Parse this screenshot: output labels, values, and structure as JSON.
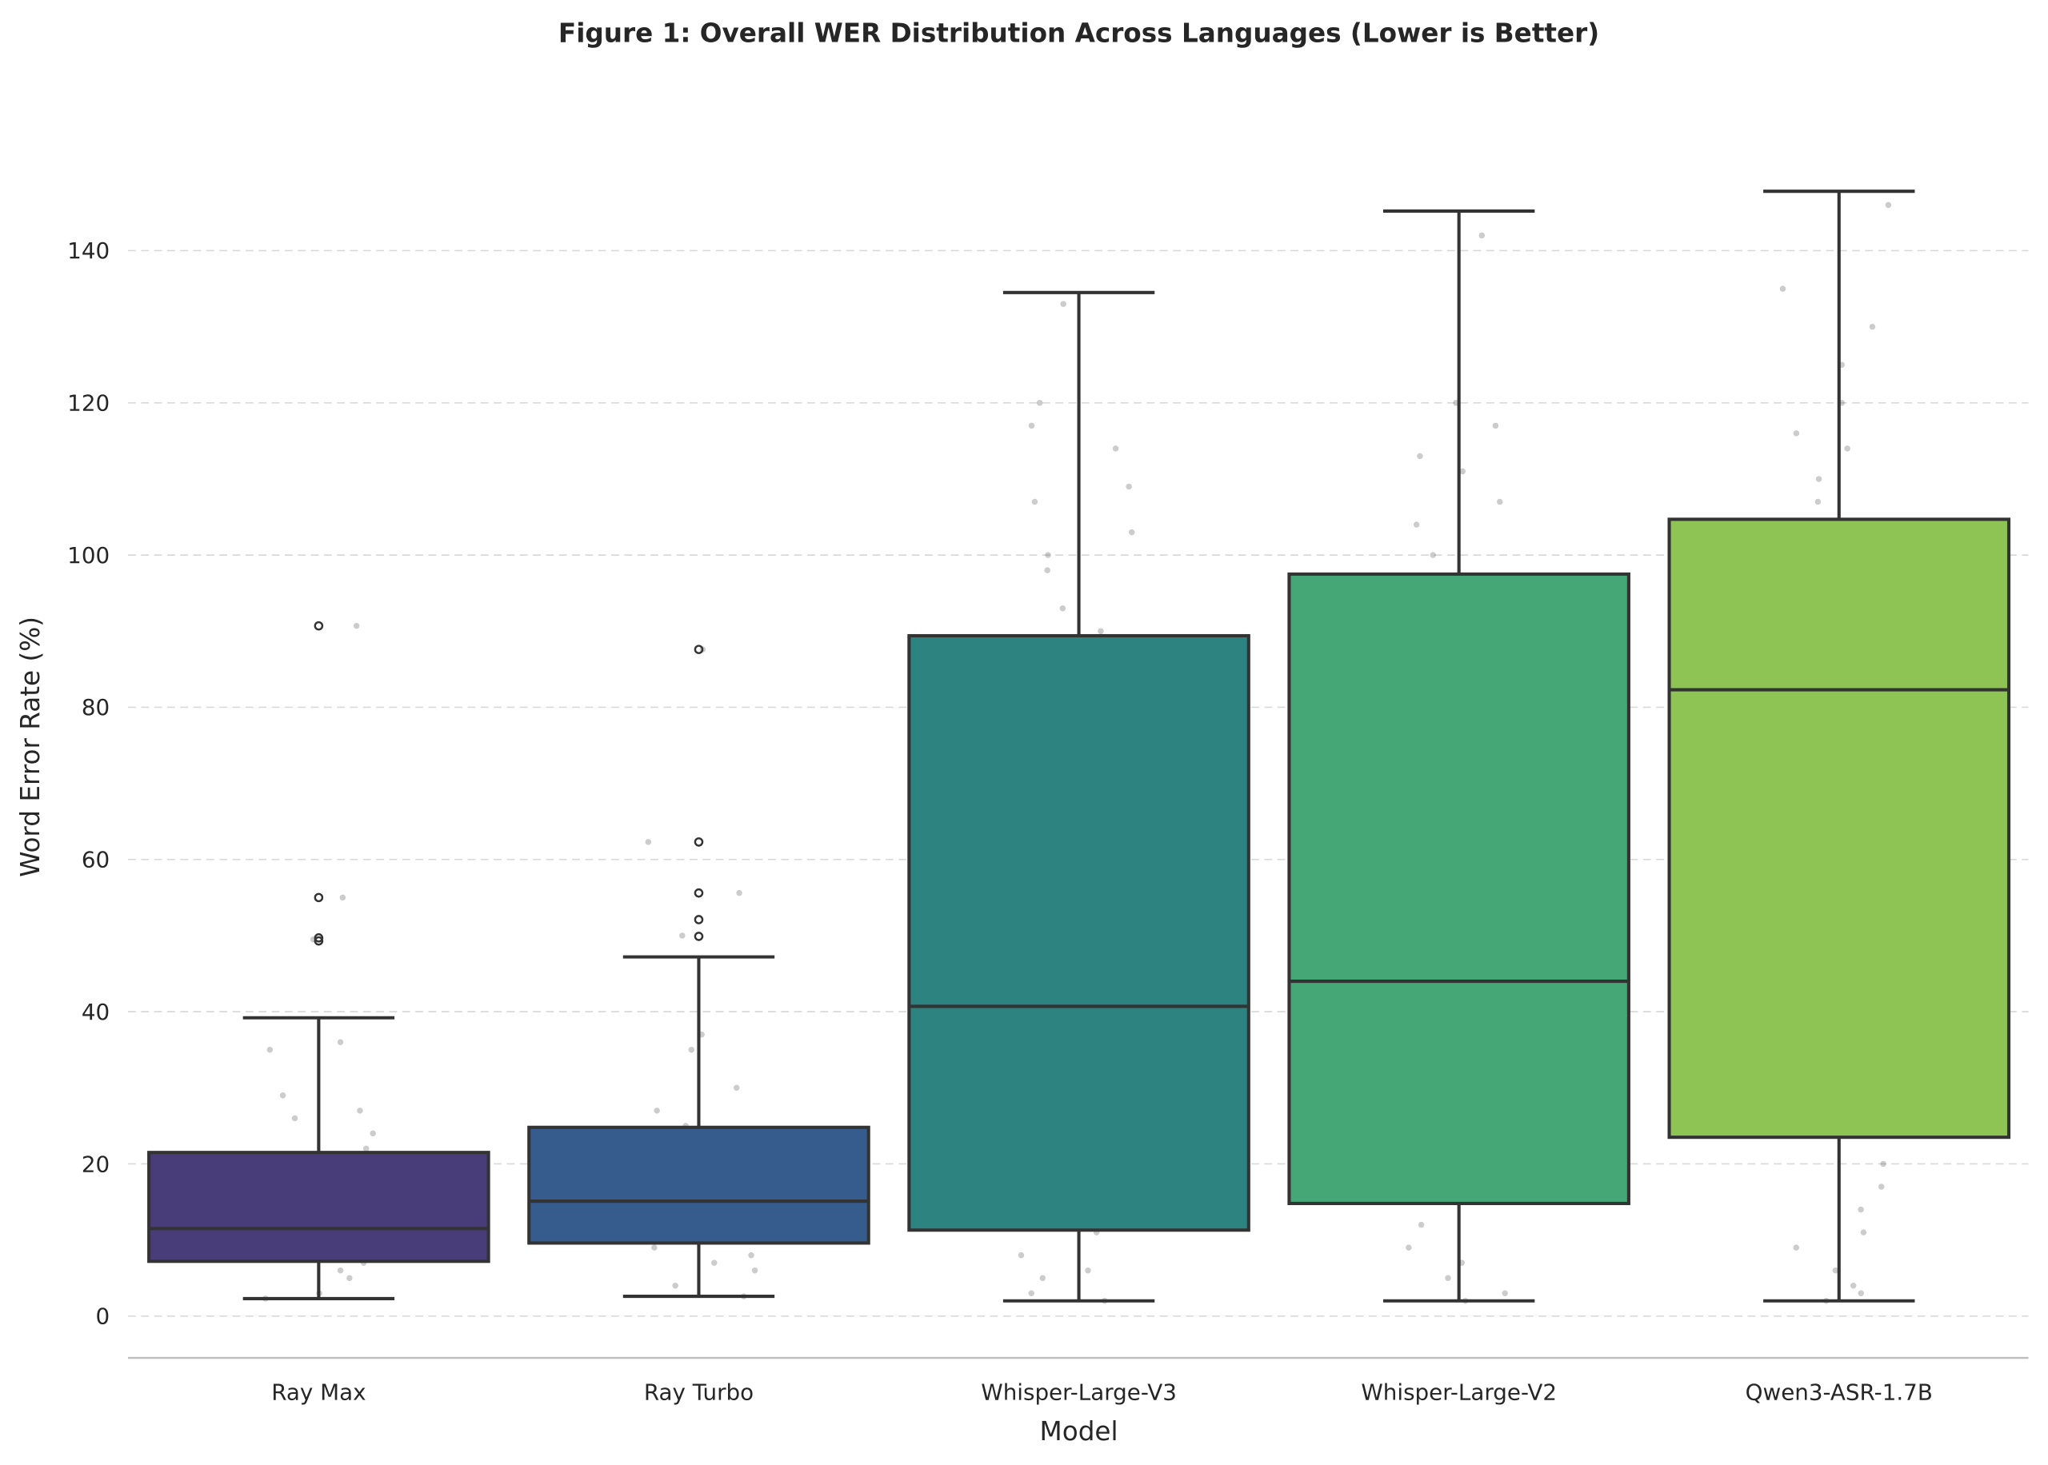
{
  "chart_data": {
    "type": "box",
    "title": "Figure 1: Overall WER Distribution Across Languages (Lower is Better)",
    "xlabel": "Model",
    "ylabel": "Word Error Rate (%)",
    "ylim": [
      -5,
      152
    ],
    "yticks": [
      0,
      20,
      40,
      60,
      80,
      100,
      120,
      140
    ],
    "grid": "y dashed",
    "categories": [
      "Ray Max",
      "Ray Turbo",
      "Whisper-Large-V3",
      "Whisper-Large-V2",
      "Qwen3-ASR-1.7B"
    ],
    "colors": [
      "#483d78",
      "#365c8d",
      "#2c837f",
      "#45a776",
      "#8dc454"
    ],
    "boxes": [
      {
        "whislo": 2.3,
        "q1": 7.2,
        "med": 11.5,
        "q3": 21.5,
        "whishi": 39.2,
        "fliers": [
          49.3,
          49.7,
          55.0,
          90.7
        ]
      },
      {
        "whislo": 2.6,
        "q1": 9.6,
        "med": 15.1,
        "q3": 24.8,
        "whishi": 47.2,
        "fliers": [
          49.9,
          52.1,
          55.6,
          62.3,
          87.6
        ]
      },
      {
        "whislo": 2.0,
        "q1": 11.3,
        "med": 40.7,
        "q3": 89.4,
        "whishi": 134.5,
        "fliers": []
      },
      {
        "whislo": 2.0,
        "q1": 14.8,
        "med": 44.0,
        "q3": 97.5,
        "whishi": 145.2,
        "fliers": []
      },
      {
        "whislo": 2.0,
        "q1": 23.5,
        "med": 82.3,
        "q3": 104.7,
        "whishi": 147.8,
        "fliers": []
      }
    ],
    "points": [
      [
        2.3,
        3,
        5,
        6,
        7,
        7.5,
        8,
        9,
        10,
        11,
        12,
        12.5,
        13,
        15,
        16,
        18,
        19,
        20,
        21,
        22,
        24,
        26,
        27,
        29,
        35,
        36,
        49.5,
        55,
        90.7
      ],
      [
        2.6,
        4,
        6,
        7,
        8,
        9,
        10,
        11,
        12,
        13,
        14,
        15,
        16,
        17,
        18,
        20,
        21,
        22,
        24,
        25,
        27,
        30,
        35,
        37,
        50,
        55.6,
        62.3,
        87.6
      ],
      [
        2,
        3,
        5,
        6,
        8,
        11,
        13,
        14,
        16,
        19,
        21,
        25,
        33,
        35,
        39,
        43,
        44,
        52,
        63,
        67,
        72,
        76,
        80,
        84,
        86,
        87,
        90,
        93,
        98,
        100,
        103,
        107,
        109,
        114,
        117,
        120,
        133
      ],
      [
        2,
        3,
        5,
        7,
        9,
        12,
        15,
        16,
        17,
        23,
        27,
        30,
        33,
        35,
        40,
        43,
        46,
        52,
        60,
        63,
        72,
        75,
        79,
        84,
        86,
        90,
        92,
        95,
        97,
        100,
        104,
        107,
        111,
        113,
        117,
        120,
        142
      ],
      [
        2,
        3,
        4,
        6,
        9,
        11,
        14,
        17,
        20,
        24,
        28,
        32,
        44,
        48,
        53,
        56,
        60,
        63,
        66,
        70,
        73,
        80,
        83,
        87,
        89,
        95,
        98,
        101,
        104,
        107,
        110,
        114,
        116,
        120,
        125,
        130,
        135,
        146
      ]
    ]
  }
}
